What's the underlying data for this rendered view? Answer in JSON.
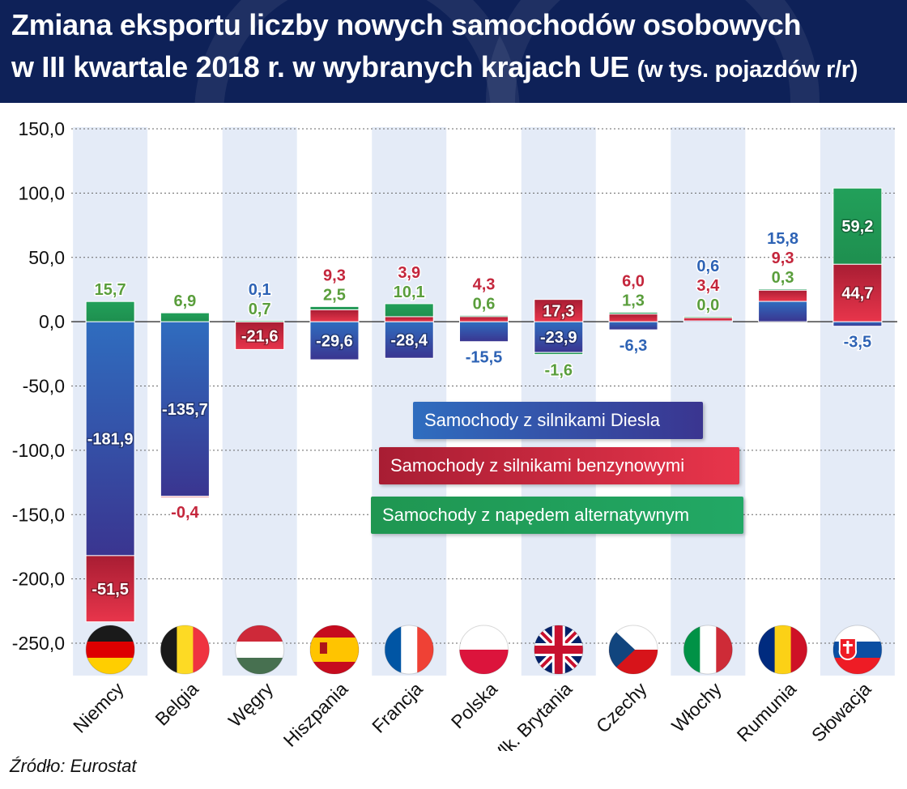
{
  "header": {
    "title_line1": "Zmiana eksportu liczby nowych samochodów osobowych",
    "title_line2": "w III kwartale 2018 r. w wybranych krajach UE",
    "subtitle": "(w tys. pojazdów r/r)"
  },
  "source": "Źródło: Eurostat",
  "legend": {
    "diesel": "Samochody z silnikami Diesla",
    "petrol": "Samochody z silnikami benzynowymi",
    "alternative": "Samochody z napędem alternatywnym"
  },
  "colors": {
    "diesel": "#2e63b5",
    "petrol": "#d12a41",
    "alternative": "#22a05a",
    "header": "#0e2158",
    "column_band": "#e4ebf7"
  },
  "chart_data": {
    "type": "bar",
    "stacked": true,
    "ylim": [
      -250,
      150
    ],
    "yticks": [
      150,
      100,
      50,
      0,
      -50,
      -100,
      -150,
      -200,
      -250
    ],
    "ytick_labels": [
      "150,0",
      "100,0",
      "50,0",
      "0,0",
      "-50,0",
      "-100,0",
      "-150,0",
      "-200,0",
      "-250,0"
    ],
    "grid": "horizontal dotted",
    "categories": [
      "Niemcy",
      "Belgia",
      "Węgry",
      "Hiszpania",
      "Francja",
      "Polska",
      "Wlk. Brytania",
      "Czechy",
      "Włochy",
      "Rumunia",
      "Słowacja"
    ],
    "flag_icons": [
      "flag-germany-icon",
      "flag-belgium-icon",
      "flag-hungary-icon",
      "flag-spain-icon",
      "flag-france-icon",
      "flag-poland-icon",
      "flag-uk-icon",
      "flag-czechia-icon",
      "flag-italy-icon",
      "flag-romania-icon",
      "flag-slovakia-icon"
    ],
    "series": [
      {
        "name": "Samochody z silnikami Diesla",
        "values": [
          -181.9,
          -135.7,
          0.1,
          -29.6,
          -28.4,
          -15.5,
          -23.9,
          -6.3,
          0.6,
          15.8,
          -3.5
        ],
        "labels": [
          "-181,9",
          "-135,7",
          "0,1",
          "-29,6",
          "-28,4",
          "-15,5",
          "-23,9",
          "-6,3",
          "0,6",
          "15,8",
          "-3,5"
        ]
      },
      {
        "name": "Samochody z silnikami benzynowymi",
        "values": [
          -51.5,
          -0.4,
          -21.6,
          9.3,
          3.9,
          4.3,
          17.3,
          6.0,
          3.4,
          9.3,
          44.7
        ],
        "labels": [
          "-51,5",
          "-0,4",
          "-21,6",
          "9,3",
          "3,9",
          "4,3",
          "17,3",
          "6,0",
          "3,4",
          "9,3",
          "44,7"
        ]
      },
      {
        "name": "Samochody z napędem alternatywnym",
        "values": [
          15.7,
          6.9,
          0.7,
          2.5,
          10.1,
          0.6,
          -1.6,
          1.3,
          0.0,
          0.3,
          59.2
        ],
        "labels": [
          "15,7",
          "6,9",
          "0,7",
          "2,5",
          "10,1",
          "0,6",
          "-1,6",
          "1,3",
          "0,0",
          "0,3",
          "59,2"
        ]
      }
    ]
  }
}
